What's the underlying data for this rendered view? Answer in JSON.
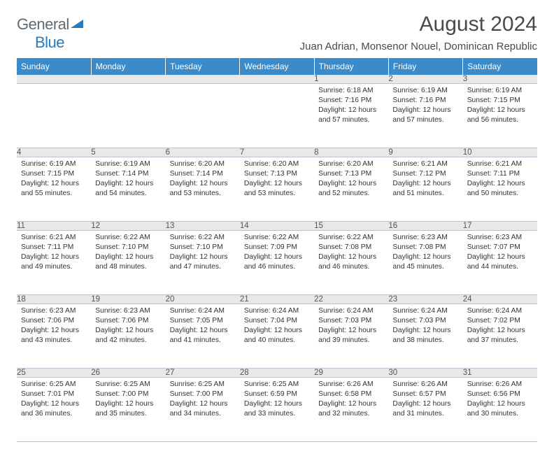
{
  "logo": {
    "text_gray": "General",
    "text_blue": "Blue"
  },
  "header": {
    "title": "August 2024",
    "location": "Juan Adrian, Monsenor Nouel, Dominican Republic"
  },
  "colors": {
    "header_bg": "#3b8bca",
    "header_text": "#ffffff",
    "daynum_bg": "#e8e8e8",
    "border": "#b8c4cf",
    "logo_gray": "#5f6a72",
    "logo_blue": "#2b79bd",
    "text": "#333333"
  },
  "day_headers": [
    "Sunday",
    "Monday",
    "Tuesday",
    "Wednesday",
    "Thursday",
    "Friday",
    "Saturday"
  ],
  "weeks": [
    [
      {
        "n": "",
        "sr": "",
        "ss": "",
        "dl": ""
      },
      {
        "n": "",
        "sr": "",
        "ss": "",
        "dl": ""
      },
      {
        "n": "",
        "sr": "",
        "ss": "",
        "dl": ""
      },
      {
        "n": "",
        "sr": "",
        "ss": "",
        "dl": ""
      },
      {
        "n": "1",
        "sr": "Sunrise: 6:18 AM",
        "ss": "Sunset: 7:16 PM",
        "dl": "Daylight: 12 hours and 57 minutes."
      },
      {
        "n": "2",
        "sr": "Sunrise: 6:19 AM",
        "ss": "Sunset: 7:16 PM",
        "dl": "Daylight: 12 hours and 57 minutes."
      },
      {
        "n": "3",
        "sr": "Sunrise: 6:19 AM",
        "ss": "Sunset: 7:15 PM",
        "dl": "Daylight: 12 hours and 56 minutes."
      }
    ],
    [
      {
        "n": "4",
        "sr": "Sunrise: 6:19 AM",
        "ss": "Sunset: 7:15 PM",
        "dl": "Daylight: 12 hours and 55 minutes."
      },
      {
        "n": "5",
        "sr": "Sunrise: 6:19 AM",
        "ss": "Sunset: 7:14 PM",
        "dl": "Daylight: 12 hours and 54 minutes."
      },
      {
        "n": "6",
        "sr": "Sunrise: 6:20 AM",
        "ss": "Sunset: 7:14 PM",
        "dl": "Daylight: 12 hours and 53 minutes."
      },
      {
        "n": "7",
        "sr": "Sunrise: 6:20 AM",
        "ss": "Sunset: 7:13 PM",
        "dl": "Daylight: 12 hours and 53 minutes."
      },
      {
        "n": "8",
        "sr": "Sunrise: 6:20 AM",
        "ss": "Sunset: 7:13 PM",
        "dl": "Daylight: 12 hours and 52 minutes."
      },
      {
        "n": "9",
        "sr": "Sunrise: 6:21 AM",
        "ss": "Sunset: 7:12 PM",
        "dl": "Daylight: 12 hours and 51 minutes."
      },
      {
        "n": "10",
        "sr": "Sunrise: 6:21 AM",
        "ss": "Sunset: 7:11 PM",
        "dl": "Daylight: 12 hours and 50 minutes."
      }
    ],
    [
      {
        "n": "11",
        "sr": "Sunrise: 6:21 AM",
        "ss": "Sunset: 7:11 PM",
        "dl": "Daylight: 12 hours and 49 minutes."
      },
      {
        "n": "12",
        "sr": "Sunrise: 6:22 AM",
        "ss": "Sunset: 7:10 PM",
        "dl": "Daylight: 12 hours and 48 minutes."
      },
      {
        "n": "13",
        "sr": "Sunrise: 6:22 AM",
        "ss": "Sunset: 7:10 PM",
        "dl": "Daylight: 12 hours and 47 minutes."
      },
      {
        "n": "14",
        "sr": "Sunrise: 6:22 AM",
        "ss": "Sunset: 7:09 PM",
        "dl": "Daylight: 12 hours and 46 minutes."
      },
      {
        "n": "15",
        "sr": "Sunrise: 6:22 AM",
        "ss": "Sunset: 7:08 PM",
        "dl": "Daylight: 12 hours and 46 minutes."
      },
      {
        "n": "16",
        "sr": "Sunrise: 6:23 AM",
        "ss": "Sunset: 7:08 PM",
        "dl": "Daylight: 12 hours and 45 minutes."
      },
      {
        "n": "17",
        "sr": "Sunrise: 6:23 AM",
        "ss": "Sunset: 7:07 PM",
        "dl": "Daylight: 12 hours and 44 minutes."
      }
    ],
    [
      {
        "n": "18",
        "sr": "Sunrise: 6:23 AM",
        "ss": "Sunset: 7:06 PM",
        "dl": "Daylight: 12 hours and 43 minutes."
      },
      {
        "n": "19",
        "sr": "Sunrise: 6:23 AM",
        "ss": "Sunset: 7:06 PM",
        "dl": "Daylight: 12 hours and 42 minutes."
      },
      {
        "n": "20",
        "sr": "Sunrise: 6:24 AM",
        "ss": "Sunset: 7:05 PM",
        "dl": "Daylight: 12 hours and 41 minutes."
      },
      {
        "n": "21",
        "sr": "Sunrise: 6:24 AM",
        "ss": "Sunset: 7:04 PM",
        "dl": "Daylight: 12 hours and 40 minutes."
      },
      {
        "n": "22",
        "sr": "Sunrise: 6:24 AM",
        "ss": "Sunset: 7:03 PM",
        "dl": "Daylight: 12 hours and 39 minutes."
      },
      {
        "n": "23",
        "sr": "Sunrise: 6:24 AM",
        "ss": "Sunset: 7:03 PM",
        "dl": "Daylight: 12 hours and 38 minutes."
      },
      {
        "n": "24",
        "sr": "Sunrise: 6:24 AM",
        "ss": "Sunset: 7:02 PM",
        "dl": "Daylight: 12 hours and 37 minutes."
      }
    ],
    [
      {
        "n": "25",
        "sr": "Sunrise: 6:25 AM",
        "ss": "Sunset: 7:01 PM",
        "dl": "Daylight: 12 hours and 36 minutes."
      },
      {
        "n": "26",
        "sr": "Sunrise: 6:25 AM",
        "ss": "Sunset: 7:00 PM",
        "dl": "Daylight: 12 hours and 35 minutes."
      },
      {
        "n": "27",
        "sr": "Sunrise: 6:25 AM",
        "ss": "Sunset: 7:00 PM",
        "dl": "Daylight: 12 hours and 34 minutes."
      },
      {
        "n": "28",
        "sr": "Sunrise: 6:25 AM",
        "ss": "Sunset: 6:59 PM",
        "dl": "Daylight: 12 hours and 33 minutes."
      },
      {
        "n": "29",
        "sr": "Sunrise: 6:26 AM",
        "ss": "Sunset: 6:58 PM",
        "dl": "Daylight: 12 hours and 32 minutes."
      },
      {
        "n": "30",
        "sr": "Sunrise: 6:26 AM",
        "ss": "Sunset: 6:57 PM",
        "dl": "Daylight: 12 hours and 31 minutes."
      },
      {
        "n": "31",
        "sr": "Sunrise: 6:26 AM",
        "ss": "Sunset: 6:56 PM",
        "dl": "Daylight: 12 hours and 30 minutes."
      }
    ]
  ]
}
